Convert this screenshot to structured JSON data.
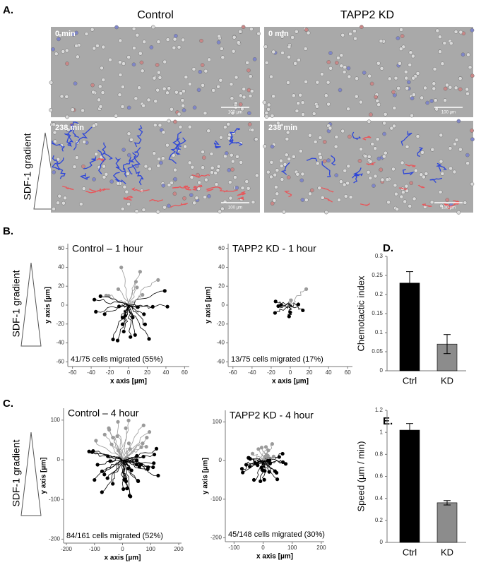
{
  "panel_labels": [
    "A.",
    "B.",
    "C.",
    "D.",
    "E."
  ],
  "panel_a": {
    "column_titles": [
      "Control",
      "TAPP2 KD"
    ],
    "gradient_label": "SDF-1 gradient",
    "time_labels": [
      "0 min",
      "238 min"
    ],
    "scale_bar": "100 µm"
  },
  "trajectory_panels": [
    {
      "gradient_label": "SDF-1 gradient",
      "plots": [
        {
          "title": "Control – 1 hour",
          "caption": "41/75 cells migrated (55%)",
          "xlabel": "x axis [µm]",
          "ylabel": "y axis [µm]",
          "xlim": [
            -65,
            65
          ],
          "ylim": [
            -65,
            65
          ],
          "xticks": [
            -60,
            -40,
            -20,
            0,
            20,
            40,
            60
          ],
          "yticks": [
            -60,
            -40,
            -20,
            0,
            20,
            40,
            60
          ]
        },
        {
          "title": "TAPP2 KD - 1 hour",
          "caption": "13/75 cells migrated (17%)",
          "xlabel": "x axis [µm]",
          "ylabel": "y axis [µm]",
          "xlim": [
            -65,
            65
          ],
          "ylim": [
            -65,
            65
          ],
          "xticks": [
            -60,
            -40,
            -20,
            0,
            20,
            40,
            60
          ],
          "yticks": [
            -60,
            -40,
            -20,
            0,
            20,
            40,
            60
          ]
        }
      ]
    },
    {
      "gradient_label": "SDF-1 gradient",
      "plots": [
        {
          "title": "Control – 4 hour",
          "caption": "84/161 cells migrated (52%)",
          "xlabel": "x axis [µm]",
          "ylabel": "y axis [µm]",
          "xlim": [
            -210,
            210
          ],
          "ylim": [
            -210,
            130
          ],
          "xticks": [
            -200,
            -100,
            0,
            100,
            200
          ],
          "yticks": [
            -200,
            -100,
            0,
            100
          ]
        },
        {
          "title": "TAPP2 KD - 4 hour",
          "caption": "45/148 cells migrated (30%)",
          "xlabel": "x axis [µm]",
          "ylabel": "y axis [µm]",
          "xlim": [
            -130,
            210
          ],
          "ylim": [
            -210,
            130
          ],
          "xticks": [
            -100,
            0,
            100,
            200
          ],
          "yticks": [
            -200,
            -100,
            0,
            100
          ]
        }
      ]
    }
  ],
  "chart_data": [
    {
      "type": "bar",
      "ylabel": "Chemotactic index",
      "categories": [
        "Ctrl",
        "KD"
      ],
      "values": [
        0.23,
        0.07
      ],
      "errors": [
        0.03,
        0.025
      ],
      "colors": [
        "#000000",
        "#8c8c8c"
      ],
      "ylim": [
        0,
        0.3
      ],
      "yticks": [
        0,
        0.05,
        0.1,
        0.15,
        0.2,
        0.25,
        0.3
      ]
    },
    {
      "type": "bar",
      "ylabel": "Speed (µm / min)",
      "categories": [
        "Ctrl",
        "KD"
      ],
      "values": [
        1.02,
        0.36
      ],
      "errors": [
        0.06,
        0.02
      ],
      "colors": [
        "#000000",
        "#8c8c8c"
      ],
      "ylim": [
        0,
        1.2
      ],
      "yticks": [
        0,
        0.2,
        0.4,
        0.6,
        0.8,
        1,
        1.2
      ]
    }
  ]
}
